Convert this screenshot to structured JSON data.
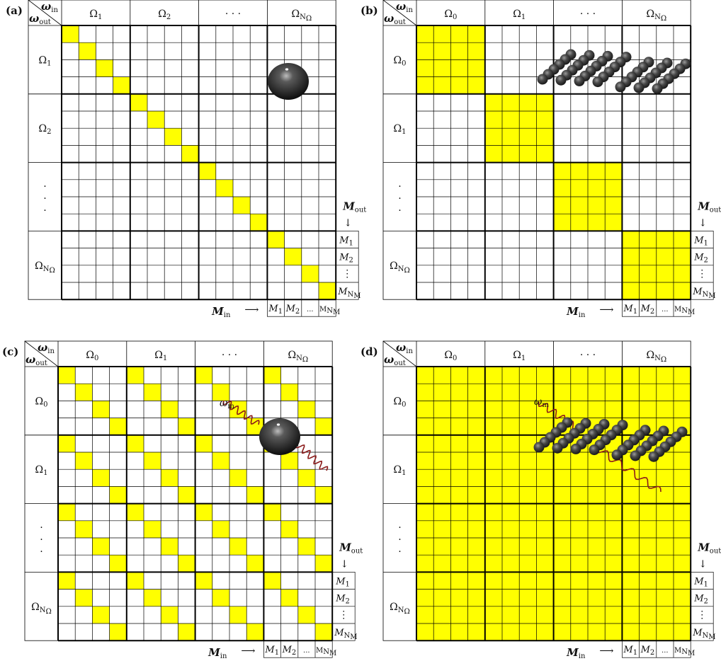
{
  "colors": {
    "fill": "#ffff00",
    "grid": "#000000",
    "sphere": "#2a2a2a",
    "wave": "#8b1a1a"
  },
  "text": {
    "omega_in": "ω",
    "omega_in_sub": "in",
    "omega_out": "ω",
    "omega_out_sub": "out",
    "Omega": "Ω",
    "Omega_N": "Ω",
    "Omega_N_sub": "N",
    "Omega_N_subsub": "Ω",
    "dots_h": ". . .",
    "dots_v": ".",
    "M_letter": "M",
    "M_in_sub": "in",
    "M_out_sub": "out",
    "ellipsis": "...",
    "vdots": "⋮",
    "N_M_sub": "N",
    "N_M_subsub": "M",
    "omega_m": "ω",
    "omega_m_sub": "m",
    "arrow": "⟶",
    "down_arrow": "↓"
  },
  "panels": [
    {
      "id": "a",
      "label": "(a)",
      "col_headers": [
        {
          "sym": "Ω",
          "sub": "1"
        },
        {
          "sym": "Ω",
          "sub": "2"
        },
        {
          "sym": ". . .",
          "sub": ""
        },
        {
          "sym": "Ω",
          "sub": "NΩ"
        }
      ],
      "row_headers": [
        {
          "sym": "Ω",
          "sub": "1"
        },
        {
          "sym": "Ω",
          "sub": "2"
        },
        {
          "sym": "dots",
          "sub": ""
        },
        {
          "sym": "Ω",
          "sub": "NΩ"
        }
      ],
      "pattern": "diagonal",
      "decoration": "sphere",
      "m_labels": [
        "M1",
        "M2",
        "⋮",
        "MNM"
      ],
      "m_in_labels": [
        "M1",
        "M2",
        "...",
        "MNM"
      ]
    },
    {
      "id": "b",
      "label": "(b)",
      "col_headers": [
        {
          "sym": "Ω",
          "sub": "0"
        },
        {
          "sym": "Ω",
          "sub": "1"
        },
        {
          "sym": ". . .",
          "sub": ""
        },
        {
          "sym": "Ω",
          "sub": "NΩ"
        }
      ],
      "row_headers": [
        {
          "sym": "Ω",
          "sub": "0"
        },
        {
          "sym": "Ω",
          "sub": "1"
        },
        {
          "sym": "dots",
          "sub": ""
        },
        {
          "sym": "Ω",
          "sub": "NΩ"
        }
      ],
      "pattern": "block-diagonal",
      "decoration": "array",
      "m_labels": [
        "M1",
        "M2",
        "⋮",
        "MNM"
      ],
      "m_in_labels": [
        "M1",
        "M2",
        "...",
        "MNM"
      ]
    },
    {
      "id": "c",
      "label": "(c)",
      "col_headers": [
        {
          "sym": "Ω",
          "sub": "0"
        },
        {
          "sym": "Ω",
          "sub": "1"
        },
        {
          "sym": ". . .",
          "sub": ""
        },
        {
          "sym": "Ω",
          "sub": "NΩ"
        }
      ],
      "row_headers": [
        {
          "sym": "Ω",
          "sub": "0"
        },
        {
          "sym": "Ω",
          "sub": "1"
        },
        {
          "sym": "dots",
          "sub": ""
        },
        {
          "sym": "Ω",
          "sub": "NΩ"
        }
      ],
      "pattern": "block-identity",
      "decoration": "sphere-wave",
      "m_labels": [
        "M1",
        "M2",
        "⋮",
        "MNM"
      ],
      "m_in_labels": [
        "M1",
        "M2",
        "...",
        "MNM"
      ]
    },
    {
      "id": "d",
      "label": "(d)",
      "col_headers": [
        {
          "sym": "Ω",
          "sub": "0"
        },
        {
          "sym": "Ω",
          "sub": "1"
        },
        {
          "sym": ". . .",
          "sub": ""
        },
        {
          "sym": "Ω",
          "sub": "NΩ"
        }
      ],
      "row_headers": [
        {
          "sym": "Ω",
          "sub": "0"
        },
        {
          "sym": "Ω",
          "sub": "1"
        },
        {
          "sym": "dots",
          "sub": ""
        },
        {
          "sym": "Ω",
          "sub": "NΩ"
        }
      ],
      "pattern": "full",
      "decoration": "array-wave",
      "m_labels": [
        "M1",
        "M2",
        "⋮",
        "MNM"
      ],
      "m_in_labels": [
        "M1",
        "M2",
        "...",
        "MNM"
      ]
    }
  ]
}
